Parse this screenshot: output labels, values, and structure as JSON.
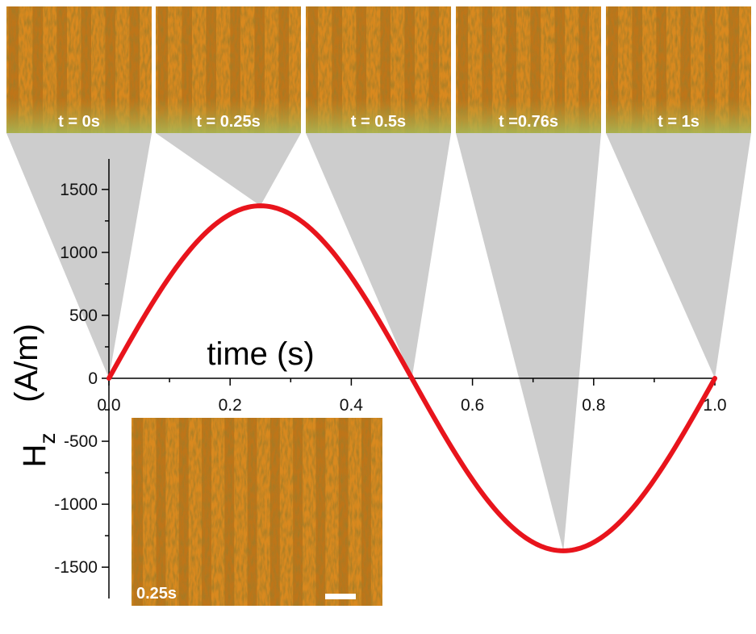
{
  "chart_data": {
    "type": "line",
    "title": "",
    "xlabel": "time (s)",
    "ylabel_main": "H",
    "ylabel_sub": "z",
    "ylabel_unit": "(A/m)",
    "xlim": [
      0,
      1.0
    ],
    "ylim": [
      -1800,
      1800
    ],
    "x_ticks": [
      0.0,
      0.2,
      0.4,
      0.6,
      0.8,
      1.0
    ],
    "x_tick_labels": [
      "0.0",
      "0.2",
      "0.4",
      "0.6",
      "0.8",
      "1.0"
    ],
    "y_ticks": [
      -1500,
      -1000,
      -500,
      0,
      500,
      1000,
      1500
    ],
    "y_tick_labels": [
      "-1500",
      "-1000",
      "-500",
      "0",
      "500",
      "1000",
      "1500"
    ],
    "series": [
      {
        "color": "#e8141c",
        "function": "sine",
        "amplitude": 1370,
        "period": 1.0,
        "x": [
          0.0,
          0.05,
          0.1,
          0.15,
          0.2,
          0.25,
          0.3,
          0.35,
          0.4,
          0.45,
          0.5,
          0.55,
          0.6,
          0.65,
          0.7,
          0.75,
          0.8,
          0.85,
          0.9,
          0.95,
          1.0
        ],
        "values": [
          0,
          423,
          805,
          1108,
          1303,
          1370,
          1303,
          1108,
          805,
          423,
          0,
          -423,
          -805,
          -1108,
          -1303,
          -1370,
          -1303,
          -1108,
          -805,
          -423,
          0
        ]
      }
    ],
    "grid": false,
    "snapshots": [
      {
        "label": "t = 0s",
        "t": 0.0
      },
      {
        "label": "t = 0.25s",
        "t": 0.25
      },
      {
        "label": "t = 0.5s",
        "t": 0.5
      },
      {
        "label": "t =0.76s",
        "t": 0.76
      },
      {
        "label": "t = 1s",
        "t": 1.0
      }
    ],
    "inset_label": "0.25s"
  },
  "colors": {
    "curve": "#e8141c",
    "callout": "#cdcdcd",
    "micrograph_base": "#d9891f",
    "micrograph_stripe": "#a86414",
    "label_band": "#a7ba58"
  }
}
